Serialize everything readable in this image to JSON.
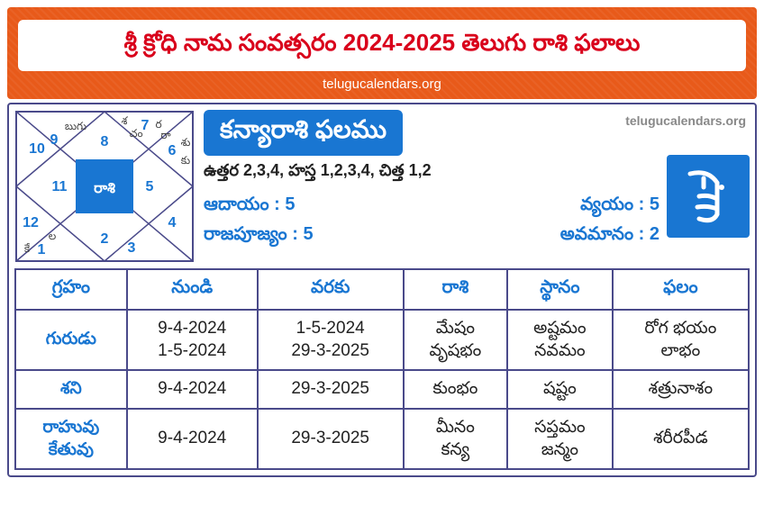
{
  "header": {
    "title": "శ్రీ క్రోధి నామ సంవత్సరం 2024-2025 తెలుగు రాశి ఫలాలు",
    "subtitle": "telugucalendars.org"
  },
  "chart": {
    "center_label": "రాశి",
    "houses": [
      "1",
      "2",
      "3",
      "4",
      "5",
      "6",
      "7",
      "8",
      "9",
      "10",
      "11",
      "12"
    ],
    "annotations": {
      "h1": "కే",
      "h1b": "ల",
      "h6": "శు",
      "h6b": "కు",
      "h7": "రా",
      "h7b": "ర",
      "h8": "శ",
      "h8b": "చం",
      "h9": "బుగు"
    },
    "colors": {
      "accent": "#1976d2",
      "line": "#4a4a8a",
      "bg": "#ffffff"
    }
  },
  "info": {
    "rasi_title": "కన్యారాశి ఫలము",
    "watermark": "telugucalendars.org",
    "nakshatra": "ఉత్తర 2,3,4, హస్త 1,2,3,4, చిత్త 1,2",
    "stats": {
      "aadayam_label": "ఆదాయం :",
      "aadayam_value": "5",
      "vyayam_label": "వ్యయం :",
      "vyayam_value": "5",
      "rajapujyam_label": "రాజపూజ్యం :",
      "rajapujyam_value": "5",
      "avamanam_label": "అవమానం :",
      "avamanam_value": "2"
    }
  },
  "table": {
    "headers": [
      "గ్రహం",
      "నుండి",
      "వరకు",
      "రాశి",
      "స్థానం",
      "ఫలం"
    ],
    "rows": [
      {
        "graham": "గురుడు",
        "from": "9-4-2024\n1-5-2024",
        "to": "1-5-2024\n29-3-2025",
        "rasi": "మేషం\nవృషభం",
        "sthanam": "అష్టమం\nనవమం",
        "phalam": "రోగ భయం\nలాభం"
      },
      {
        "graham": "శని",
        "from": "9-4-2024",
        "to": "29-3-2025",
        "rasi": "కుంభం",
        "sthanam": "షష్టం",
        "phalam": "శత్రునాశం"
      },
      {
        "graham": "రాహువు\nకేతువు",
        "from": "9-4-2024",
        "to": "29-3-2025",
        "rasi": "మీనం\nకన్య",
        "sthanam": "సప్తమం\nజన్మం",
        "phalam": "శరీరపీడ"
      }
    ]
  }
}
